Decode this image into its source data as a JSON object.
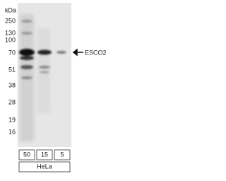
{
  "markers": {
    "unit": "kDa",
    "labels": [
      "250",
      "130",
      "100",
      "70",
      "51",
      "38",
      "28",
      "19",
      "16"
    ]
  },
  "lanes": [
    "50",
    "15",
    "5"
  ],
  "cell_line": "HeLa",
  "target": "ESCO2"
}
